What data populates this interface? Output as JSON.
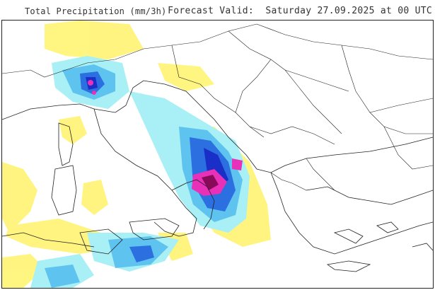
{
  "header": {
    "title": "Total Precipitation (mm/3h)",
    "forecast_label": "Forecast Valid:",
    "forecast_time": "Saturday 27.09.2025 at 00 UTC"
  },
  "colors": {
    "light_yellow": "#fff47a",
    "cyan": "#a8f0f5",
    "light_blue": "#5fc3f0",
    "blue": "#2b6fe0",
    "dark_blue": "#1a2fc8",
    "magenta": "#e830b8",
    "dark_magenta": "#8a0a5a",
    "border": "#222222"
  }
}
